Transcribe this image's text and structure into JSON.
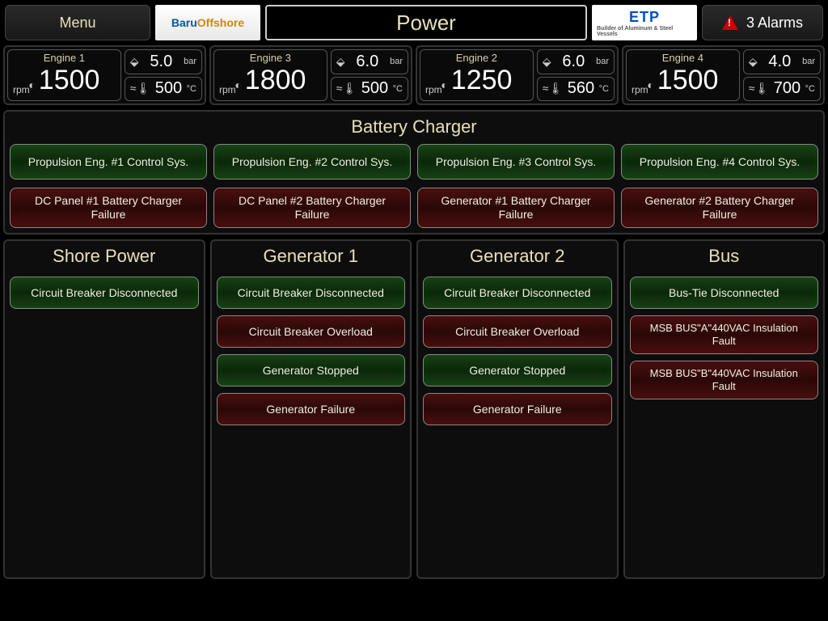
{
  "header": {
    "menu_label": "Menu",
    "title": "Power",
    "alarms_label": "3 Alarms",
    "logo1_a": "Baru",
    "logo1_b": "Offshore",
    "logo2_a": "ETP",
    "logo2_b": "Builder of Aluminum & Steel Vessels"
  },
  "engines": [
    {
      "name": "Engine 1",
      "rpm": "1500",
      "pressure": "5.0",
      "pressure_unit": "bar",
      "temp": "500",
      "temp_unit": "°C"
    },
    {
      "name": "Engine 3",
      "rpm": "1800",
      "pressure": "6.0",
      "pressure_unit": "bar",
      "temp": "500",
      "temp_unit": "°C"
    },
    {
      "name": "Engine 2",
      "rpm": "1250",
      "pressure": "6.0",
      "pressure_unit": "bar",
      "temp": "560",
      "temp_unit": "°C"
    },
    {
      "name": "Engine 4",
      "rpm": "1500",
      "pressure": "4.0",
      "pressure_unit": "bar",
      "temp": "700",
      "temp_unit": "°C"
    }
  ],
  "rpm_unit": "rpm",
  "battery": {
    "title": "Battery Charger",
    "row1": [
      "Propulsion Eng. #1 Control Sys.",
      "Propulsion Eng. #2 Control Sys.",
      "Propulsion Eng. #3 Control Sys.",
      "Propulsion Eng. #4 Control Sys."
    ],
    "row2": [
      "DC Panel #1 Battery Charger Failure",
      "DC  Panel #2 Battery Charger Failure",
      "Generator #1 Battery Charger Failure",
      "Generator #2 Battery Charger Failure"
    ]
  },
  "columns": {
    "shore": {
      "title": "Shore Power",
      "items": [
        {
          "label": "Circuit Breaker Disconnected",
          "state": "green"
        }
      ]
    },
    "gen1": {
      "title": "Generator 1",
      "items": [
        {
          "label": "Circuit Breaker Disconnected",
          "state": "green"
        },
        {
          "label": "Circuit Breaker Overload",
          "state": "red"
        },
        {
          "label": "Generator Stopped",
          "state": "green"
        },
        {
          "label": "Generator Failure",
          "state": "red"
        }
      ]
    },
    "gen2": {
      "title": "Generator 2",
      "items": [
        {
          "label": "Circuit Breaker Disconnected",
          "state": "green"
        },
        {
          "label": "Circuit Breaker Overload",
          "state": "red"
        },
        {
          "label": "Generator Stopped",
          "state": "green"
        },
        {
          "label": "Generator Failure",
          "state": "red"
        }
      ]
    },
    "bus": {
      "title": "Bus",
      "items": [
        {
          "label": "Bus-Tie Disconnected",
          "state": "green"
        },
        {
          "label": "MSB BUS\"A\"440VAC Insulation Fault",
          "state": "red",
          "tall": true
        },
        {
          "label": "MSB BUS\"B\"440VAC Insulation Fault",
          "state": "red",
          "tall": true
        }
      ]
    }
  },
  "colors": {
    "green": "#1a4018",
    "red": "#4a1010",
    "text": "#e8e0b8",
    "bg": "#000000"
  }
}
